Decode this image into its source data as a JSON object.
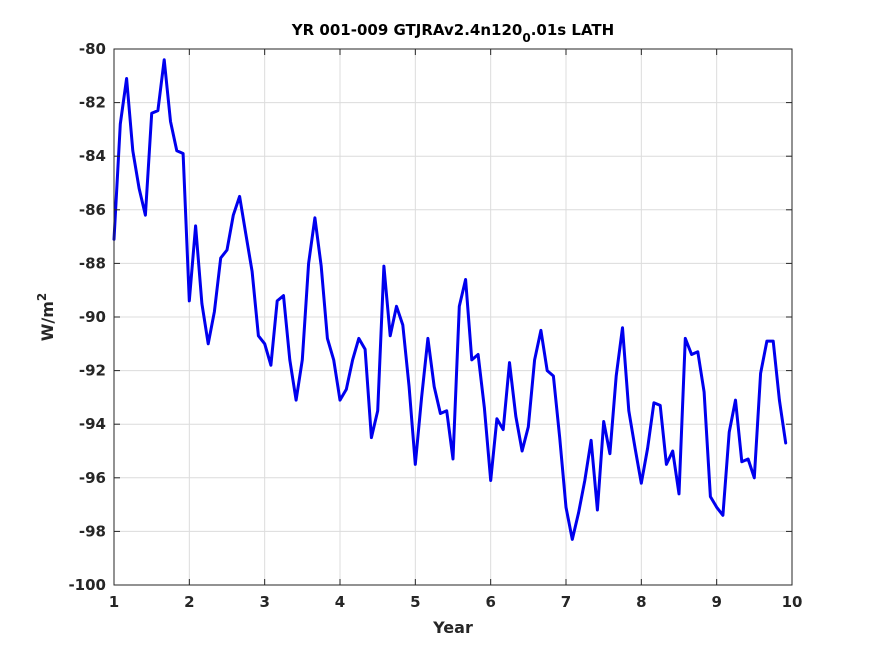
{
  "chart_data": {
    "type": "line",
    "title": {
      "main": "YR 001-009 GTJRAv2.4n120",
      "subscript": "0",
      "suffix": ".01s LATH"
    },
    "xlabel": "Year",
    "ylabel": {
      "base": "W/m",
      "superscript": "2"
    },
    "xlim": [
      1,
      10
    ],
    "ylim": [
      -100,
      -80
    ],
    "xticks": [
      "1",
      "2",
      "3",
      "4",
      "5",
      "6",
      "7",
      "8",
      "9",
      "10"
    ],
    "yticks": [
      "-80",
      "-82",
      "-84",
      "-86",
      "-88",
      "-90",
      "-92",
      "-94",
      "-96",
      "-98",
      "-100"
    ],
    "grid": true,
    "line_color": "#0000ee",
    "series": [
      {
        "x": [
          1.0,
          1.083,
          1.167,
          1.25,
          1.333,
          1.417,
          1.5,
          1.583,
          1.667,
          1.75,
          1.833,
          1.917,
          2.0,
          2.083,
          2.167,
          2.25,
          2.333,
          2.417,
          2.5,
          2.583,
          2.667,
          2.75,
          2.833,
          2.917,
          3.0,
          3.083,
          3.167,
          3.25,
          3.333,
          3.417,
          3.5,
          3.583,
          3.667,
          3.75,
          3.833,
          3.917,
          4.0,
          4.083,
          4.167,
          4.25,
          4.333,
          4.417,
          4.5,
          4.583,
          4.667,
          4.75,
          4.833,
          4.917,
          5.0,
          5.083,
          5.167,
          5.25,
          5.333,
          5.417,
          5.5,
          5.583,
          5.667,
          5.75,
          5.833,
          5.917,
          6.0,
          6.083,
          6.167,
          6.25,
          6.333,
          6.417,
          6.5,
          6.583,
          6.667,
          6.75,
          6.833,
          6.917,
          7.0,
          7.083,
          7.167,
          7.25,
          7.333,
          7.417,
          7.5,
          7.583,
          7.667,
          7.75,
          7.833,
          7.917,
          8.0,
          8.083,
          8.167,
          8.25,
          8.333,
          8.417,
          8.5,
          8.583,
          8.667,
          8.75,
          8.833,
          8.917,
          9.0,
          9.083,
          9.167,
          9.25,
          9.333,
          9.417,
          9.5,
          9.583,
          9.667,
          9.75,
          9.833,
          9.917
        ],
        "y": [
          -87.1,
          -82.8,
          -81.1,
          -83.8,
          -85.2,
          -86.2,
          -82.4,
          -82.3,
          -80.4,
          -82.7,
          -83.8,
          -83.9,
          -89.4,
          -86.6,
          -89.5,
          -91.0,
          -89.8,
          -87.8,
          -87.5,
          -86.2,
          -85.5,
          -86.9,
          -88.3,
          -90.7,
          -91.0,
          -91.8,
          -89.4,
          -89.2,
          -91.6,
          -93.1,
          -91.6,
          -88.0,
          -86.3,
          -88.1,
          -90.8,
          -91.6,
          -93.1,
          -92.7,
          -91.6,
          -90.8,
          -91.2,
          -94.5,
          -93.5,
          -88.1,
          -90.7,
          -89.6,
          -90.3,
          -92.6,
          -95.5,
          -93.0,
          -90.8,
          -92.6,
          -93.6,
          -93.5,
          -95.3,
          -89.6,
          -88.6,
          -91.6,
          -91.4,
          -93.4,
          -96.1,
          -93.8,
          -94.2,
          -91.7,
          -93.7,
          -95.0,
          -94.1,
          -91.6,
          -90.5,
          -92.0,
          -92.2,
          -94.5,
          -97.1,
          -98.3,
          -97.3,
          -96.1,
          -94.6,
          -97.2,
          -93.9,
          -95.1,
          -92.2,
          -90.4,
          -93.5,
          -94.9,
          -96.2,
          -94.9,
          -93.2,
          -93.3,
          -95.5,
          -95.0,
          -96.6,
          -90.8,
          -91.4,
          -91.3,
          -92.8,
          -96.7,
          -97.1,
          -97.4,
          -94.3,
          -93.1,
          -95.4,
          -95.3,
          -96.0,
          -92.1,
          -90.9,
          -90.9,
          -93.1,
          -94.7
        ]
      }
    ]
  }
}
